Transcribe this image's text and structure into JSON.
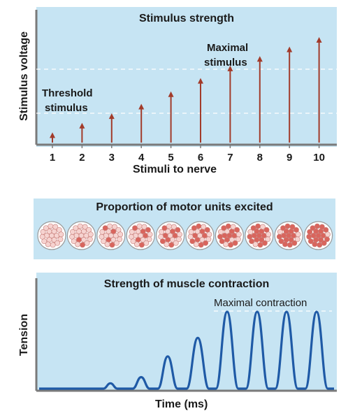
{
  "top": {
    "title": "Stimulus strength",
    "y_label": "Stimulus voltage",
    "x_label": "Stimuli to nerve",
    "threshold_label": [
      "Threshold",
      "stimulus"
    ],
    "maximal_label": [
      "Maximal",
      "stimulus"
    ],
    "ticks": [
      "1",
      "2",
      "3",
      "4",
      "5",
      "6",
      "7",
      "8",
      "9",
      "10"
    ],
    "arrow_relative_heights": [
      0.1,
      0.2,
      0.3,
      0.4,
      0.53,
      0.67,
      0.8,
      0.9,
      1.0,
      1.1
    ]
  },
  "middle": {
    "title": "Proportion of motor units excited",
    "excited_counts": [
      0,
      2,
      4,
      6,
      8,
      10,
      13,
      15,
      17,
      19
    ]
  },
  "bottom": {
    "title": "Strength of muscle contraction",
    "y_label": "Tension",
    "x_label": "Time (ms)",
    "maximal_label": "Maximal contraction",
    "peak_relative_heights": [
      0.07,
      0.15,
      0.42,
      0.66,
      1.0,
      1.0,
      1.0,
      1.0
    ]
  },
  "colors": {
    "panel_bg": "#c6e4f3",
    "arrow": "#a23b2a",
    "curve": "#1f5aa6",
    "cell_excited": "#d9655d",
    "cell_rest": "#f6d3d0"
  }
}
